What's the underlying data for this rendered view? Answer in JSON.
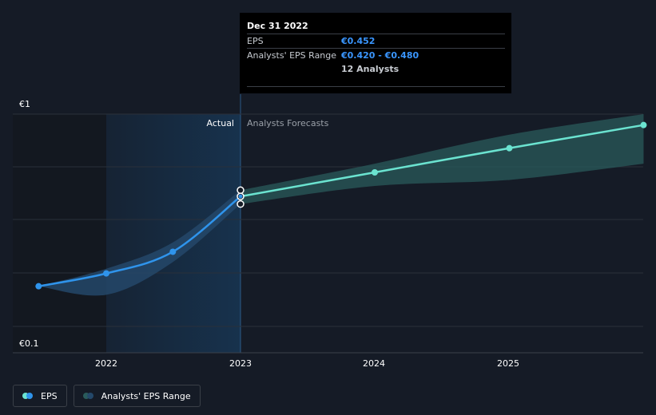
{
  "chart_data": {
    "type": "line",
    "y_axis": {
      "top_label": "€1",
      "bottom_label": "€0.1",
      "scale": "log",
      "range": [
        0.1,
        1
      ]
    },
    "x_ticks": [
      "2022",
      "2023",
      "2024",
      "2025"
    ],
    "region_labels": {
      "actual": "Actual",
      "forecast": "Analysts Forecasts"
    },
    "series": [
      {
        "name": "EPS",
        "color": "#2f94ec",
        "points": [
          {
            "x": "2021-06-30",
            "y": 0.19
          },
          {
            "x": "2021-12-31",
            "y": 0.215
          },
          {
            "x": "2022-06-30",
            "y": 0.265
          },
          {
            "x": "2022-12-31",
            "y": 0.452
          }
        ]
      },
      {
        "name": "EPS forecast",
        "color": "#6be3d0",
        "points": [
          {
            "x": "2022-12-31",
            "y": 0.452
          },
          {
            "x": "2023-12-31",
            "y": 0.57
          },
          {
            "x": "2024-12-31",
            "y": 0.72
          },
          {
            "x": "2025-12-31",
            "y": 0.9
          }
        ]
      }
    ],
    "range": {
      "name": "Analysts' EPS Range",
      "points": [
        {
          "x": "2021-12-31",
          "low": 0.175,
          "high": 0.225
        },
        {
          "x": "2022-06-30",
          "low": 0.24,
          "high": 0.29
        },
        {
          "x": "2022-12-31",
          "low": 0.42,
          "high": 0.48
        },
        {
          "x": "2023-12-31",
          "low": 0.5,
          "high": 0.62
        },
        {
          "x": "2024-12-31",
          "low": 0.53,
          "high": 0.82
        },
        {
          "x": "2025-12-31",
          "low": 0.62,
          "high": 1.0
        }
      ]
    },
    "grid": true
  },
  "tooltip": {
    "date": "Dec 31 2022",
    "eps_label": "EPS",
    "eps_value": "€0.452",
    "range_label": "Analysts' EPS Range",
    "range_value": "€0.420 - €0.480",
    "analysts": "12 Analysts"
  },
  "legend": {
    "eps_label": "EPS",
    "range_label": "Analysts' EPS Range"
  },
  "colors": {
    "background": "#151b26",
    "actual_band": "#17324d",
    "eps_line": "#2f94ec",
    "forecast_line": "#6be3d0",
    "forecast_range_fill": "#2a5b5b"
  }
}
